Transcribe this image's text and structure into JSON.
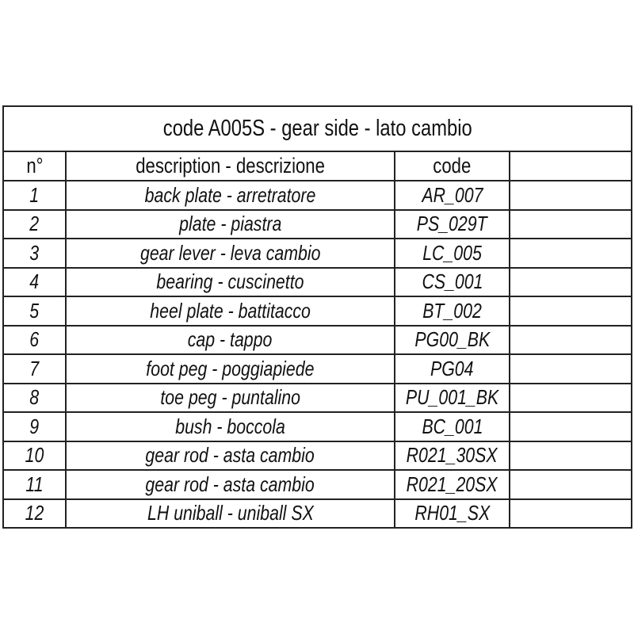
{
  "title": "code A005S - gear side - lato cambio",
  "headers": {
    "number": "n°",
    "description": "description - descrizione",
    "code": "code"
  },
  "rows": [
    {
      "n": "1",
      "description": "back plate - arretratore",
      "code": "AR_007"
    },
    {
      "n": "2",
      "description": "plate - piastra",
      "code": "PS_029T"
    },
    {
      "n": "3",
      "description": "gear lever - leva cambio",
      "code": "LC_005"
    },
    {
      "n": "4",
      "description": "bearing - cuscinetto",
      "code": "CS_001"
    },
    {
      "n": "5",
      "description": "heel plate - battitacco",
      "code": "BT_002"
    },
    {
      "n": "6",
      "description": "cap - tappo",
      "code": "PG00_BK"
    },
    {
      "n": "7",
      "description": "foot peg - poggiapiede",
      "code": "PG04"
    },
    {
      "n": "8",
      "description": "toe peg - puntalino",
      "code": "PU_001_BK"
    },
    {
      "n": "9",
      "description": "bush - boccola",
      "code": "BC_001"
    },
    {
      "n": "10",
      "description": "gear rod - asta cambio",
      "code": "R021_30SX"
    },
    {
      "n": "11",
      "description": "gear rod - asta cambio",
      "code": "R021_20SX"
    },
    {
      "n": "12",
      "description": "LH uniball - uniball SX",
      "code": "RH01_SX"
    }
  ]
}
